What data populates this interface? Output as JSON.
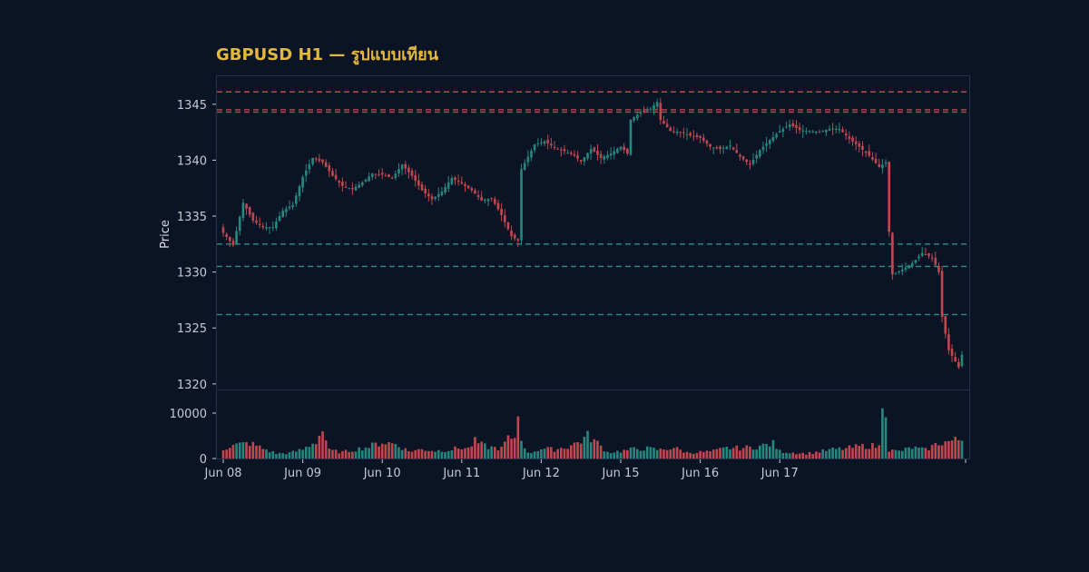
{
  "chart_data": {
    "type": "candlestick",
    "title": "GBPUSD H1 — รูปแบบเทียน",
    "ylabel": "Price",
    "ylim": [
      1319.5,
      1347.5
    ],
    "volume_ylim": [
      0,
      15000
    ],
    "x_ticks": [
      "Jun 08",
      "Jun 09",
      "Jun 10",
      "Jun 11",
      "Jun 12",
      "Jun 15",
      "Jun 16",
      "Jun 17"
    ],
    "y_ticks": [
      1320,
      1325,
      1330,
      1335,
      1340,
      1345
    ],
    "volume_ticks": [
      0,
      10000
    ],
    "resistance_levels": [
      1346.1,
      1344.5,
      1344.3
    ],
    "support_levels": [
      1332.5,
      1330.5,
      1326.2
    ],
    "colors": {
      "background": "#0b1425",
      "bull": "#26877f",
      "bear": "#c1474f",
      "resistance": "#c1474f",
      "support": "#2a8f8a",
      "title": "#e3b83f",
      "axis_text": "#c4c9d2",
      "frame": "#25304a"
    },
    "anchors": [
      [
        0,
        1333.5
      ],
      [
        3,
        1332.4
      ],
      [
        6,
        1336.2
      ],
      [
        9,
        1334.6
      ],
      [
        12,
        1334.0
      ],
      [
        15,
        1334.0
      ],
      [
        18,
        1335.5
      ],
      [
        21,
        1336.0
      ],
      [
        24,
        1338.5
      ],
      [
        27,
        1340.2
      ],
      [
        30,
        1339.8
      ],
      [
        33,
        1338.6
      ],
      [
        36,
        1337.7
      ],
      [
        39,
        1337.4
      ],
      [
        42,
        1338.0
      ],
      [
        45,
        1338.8
      ],
      [
        48,
        1338.7
      ],
      [
        51,
        1338.4
      ],
      [
        54,
        1339.6
      ],
      [
        57,
        1338.6
      ],
      [
        60,
        1337.3
      ],
      [
        63,
        1336.5
      ],
      [
        66,
        1337.2
      ],
      [
        69,
        1338.4
      ],
      [
        72,
        1337.9
      ],
      [
        75,
        1337.3
      ],
      [
        78,
        1336.4
      ],
      [
        81,
        1336.6
      ],
      [
        84,
        1335.1
      ],
      [
        87,
        1333.2
      ],
      [
        89,
        1332.8
      ],
      [
        90,
        1339.2
      ],
      [
        92,
        1340.3
      ],
      [
        94,
        1341.4
      ],
      [
        97,
        1341.7
      ],
      [
        100,
        1341.1
      ],
      [
        103,
        1340.8
      ],
      [
        106,
        1340.4
      ],
      [
        108,
        1339.9
      ],
      [
        111,
        1341.0
      ],
      [
        114,
        1340.2
      ],
      [
        117,
        1340.6
      ],
      [
        120,
        1341.2
      ],
      [
        122,
        1340.6
      ],
      [
        123,
        1343.6
      ],
      [
        126,
        1344.3
      ],
      [
        129,
        1344.6
      ],
      [
        131,
        1345.2
      ],
      [
        132,
        1343.6
      ],
      [
        135,
        1342.6
      ],
      [
        138,
        1342.5
      ],
      [
        141,
        1342.2
      ],
      [
        144,
        1342.0
      ],
      [
        147,
        1341.2
      ],
      [
        150,
        1341.0
      ],
      [
        153,
        1341.3
      ],
      [
        156,
        1340.3
      ],
      [
        159,
        1339.6
      ],
      [
        162,
        1340.9
      ],
      [
        165,
        1341.8
      ],
      [
        168,
        1342.6
      ],
      [
        171,
        1343.2
      ],
      [
        174,
        1342.7
      ],
      [
        177,
        1342.6
      ],
      [
        180,
        1342.5
      ],
      [
        183,
        1342.8
      ],
      [
        186,
        1342.8
      ],
      [
        189,
        1341.9
      ],
      [
        192,
        1341.2
      ],
      [
        195,
        1340.4
      ],
      [
        198,
        1339.4
      ],
      [
        200,
        1339.8
      ],
      [
        201,
        1333.6
      ],
      [
        202,
        1329.8
      ],
      [
        205,
        1330.2
      ],
      [
        208,
        1330.8
      ],
      [
        211,
        1331.7
      ],
      [
        214,
        1331.3
      ],
      [
        216,
        1330.0
      ],
      [
        217,
        1326.0
      ],
      [
        219,
        1323.0
      ],
      [
        221,
        1322.0
      ],
      [
        222,
        1321.5
      ],
      [
        223,
        1322.6
      ]
    ],
    "volume_anchors": [
      [
        0,
        2200
      ],
      [
        4,
        3000
      ],
      [
        8,
        3400
      ],
      [
        12,
        2200
      ],
      [
        16,
        1100
      ],
      [
        20,
        1200
      ],
      [
        24,
        2000
      ],
      [
        28,
        3800
      ],
      [
        30,
        6300
      ],
      [
        32,
        1800
      ],
      [
        36,
        1400
      ],
      [
        40,
        2000
      ],
      [
        44,
        2600
      ],
      [
        48,
        3600
      ],
      [
        52,
        3200
      ],
      [
        56,
        1600
      ],
      [
        60,
        2000
      ],
      [
        64,
        1700
      ],
      [
        68,
        1900
      ],
      [
        72,
        2400
      ],
      [
        74,
        2200
      ],
      [
        76,
        3800
      ],
      [
        78,
        3000
      ],
      [
        80,
        2500
      ],
      [
        84,
        2200
      ],
      [
        86,
        4600
      ],
      [
        87,
        3600
      ],
      [
        88,
        4900
      ],
      [
        89,
        9200
      ],
      [
        90,
        4500
      ],
      [
        92,
        1100
      ],
      [
        96,
        2200
      ],
      [
        100,
        2000
      ],
      [
        104,
        2600
      ],
      [
        108,
        3900
      ],
      [
        110,
        5000
      ],
      [
        112,
        4000
      ],
      [
        116,
        1400
      ],
      [
        120,
        1600
      ],
      [
        124,
        2100
      ],
      [
        128,
        2200
      ],
      [
        132,
        1900
      ],
      [
        136,
        2400
      ],
      [
        140,
        1300
      ],
      [
        144,
        1400
      ],
      [
        148,
        1600
      ],
      [
        152,
        2300
      ],
      [
        156,
        2300
      ],
      [
        160,
        2500
      ],
      [
        164,
        3000
      ],
      [
        166,
        3300
      ],
      [
        168,
        1600
      ],
      [
        172,
        1300
      ],
      [
        176,
        1100
      ],
      [
        180,
        1500
      ],
      [
        184,
        2000
      ],
      [
        188,
        2200
      ],
      [
        192,
        2700
      ],
      [
        196,
        2800
      ],
      [
        198,
        2600
      ],
      [
        199,
        13800
      ],
      [
        200,
        12000
      ],
      [
        201,
        1800
      ],
      [
        204,
        1600
      ],
      [
        208,
        2400
      ],
      [
        212,
        1900
      ],
      [
        216,
        3400
      ],
      [
        220,
        3900
      ],
      [
        223,
        4200
      ]
    ]
  }
}
